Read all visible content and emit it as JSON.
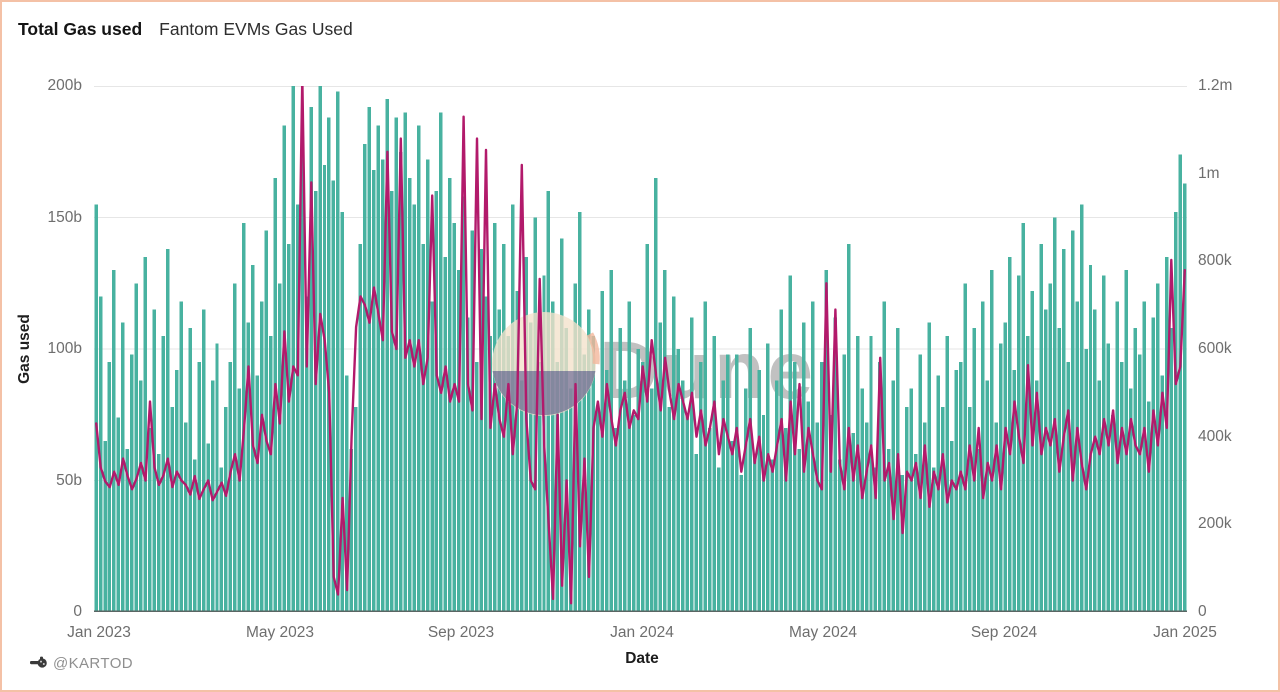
{
  "header": {
    "title": "Total Gas used",
    "subtitle": "Fantom EVMs Gas Used"
  },
  "footer": {
    "author": "@KARTOD"
  },
  "watermark": {
    "text": "Dune"
  },
  "colors": {
    "bars": "#48b2a0",
    "line": "#b21a6b",
    "grid": "#e6e6e6",
    "axis_text": "#6e6e6e",
    "baseline": "#5a6664",
    "card_border": "#f4c1a6",
    "watermark_text": "#8f8f8f",
    "watermark_circle_top": "#f3e1cb",
    "watermark_circle_bottom": "#373a7c"
  },
  "chart_data": {
    "type": "bar",
    "title": "Total Gas used — Fantom EVMs Gas Used",
    "xlabel": "Date",
    "grid": "horizontal",
    "legend": "none",
    "x_start": "2023-01-01",
    "interval_days": 3,
    "x_axis": {
      "label": "Date",
      "tick_labels": [
        "Jan 2023",
        "May 2023",
        "Sep 2023",
        "Jan 2024",
        "May 2024",
        "Sep 2024",
        "Jan 2025"
      ]
    },
    "y_left_axis": {
      "label": "Gas used",
      "tick_labels": [
        "200b",
        "150b",
        "100b",
        "50b",
        "0"
      ],
      "max_b": 200,
      "range": [
        0,
        200000000000
      ]
    },
    "y_right_axis": {
      "tick_labels": [
        "1.2m",
        "1m",
        "800k",
        "600k",
        "400k",
        "200k",
        "0"
      ],
      "max_k": 1200,
      "range": [
        0,
        1200000
      ]
    },
    "series": [
      {
        "name": "Total Gas used",
        "kind": "bar",
        "axis": "left",
        "unit": "billions",
        "color": "#48b2a0",
        "values": [
          155,
          120,
          65,
          95,
          130,
          74,
          110,
          62,
          98,
          125,
          88,
          135,
          70,
          115,
          60,
          105,
          138,
          78,
          92,
          118,
          72,
          108,
          58,
          95,
          115,
          64,
          88,
          102,
          55,
          78,
          95,
          125,
          85,
          148,
          110,
          132,
          90,
          118,
          145,
          105,
          165,
          125,
          185,
          140,
          200,
          155,
          178,
          120,
          192,
          160,
          203,
          170,
          188,
          164,
          198,
          152,
          90,
          62,
          78,
          140,
          178,
          192,
          168,
          185,
          172,
          195,
          160,
          188,
          175,
          190,
          165,
          155,
          185,
          140,
          172,
          118,
          160,
          190,
          135,
          165,
          148,
          130,
          158,
          112,
          145,
          95,
          138,
          120,
          105,
          148,
          115,
          140,
          105,
          155,
          122,
          88,
          135,
          110,
          150,
          95,
          128,
          160,
          118,
          95,
          142,
          108,
          85,
          125,
          152,
          98,
          115,
          105,
          78,
          122,
          92,
          130,
          70,
          108,
          88,
          118,
          75,
          100,
          95,
          140,
          85,
          165,
          110,
          130,
          78,
          120,
          100,
          88,
          75,
          112,
          60,
          95,
          118,
          70,
          105,
          55,
          88,
          98,
          65,
          98,
          52,
          85,
          108,
          60,
          92,
          75,
          102,
          58,
          88,
          115,
          70,
          128,
          95,
          62,
          110,
          80,
          118,
          72,
          95,
          130,
          75,
          112,
          58,
          98,
          140,
          68,
          105,
          85,
          72,
          105,
          55,
          95,
          118,
          62,
          88,
          108,
          52,
          78,
          85,
          60,
          98,
          72,
          110,
          55,
          90,
          78,
          105,
          65,
          92,
          95,
          125,
          78,
          108,
          62,
          118,
          88,
          130,
          72,
          102,
          110,
          135,
          92,
          128,
          148,
          105,
          122,
          88,
          140,
          115,
          125,
          150,
          108,
          138,
          95,
          145,
          118,
          155,
          100,
          132,
          115,
          88,
          128,
          102,
          75,
          118,
          95,
          130,
          85,
          108,
          98,
          118,
          80,
          112,
          125,
          90,
          135,
          108,
          152,
          174,
          163
        ]
      },
      {
        "name": "Fantom EVMs Gas Used",
        "kind": "line",
        "axis": "right",
        "unit": "thousands",
        "color": "#b21a6b",
        "values": [
          430,
          330,
          298,
          285,
          320,
          290,
          350,
          310,
          280,
          305,
          340,
          300,
          480,
          330,
          290,
          312,
          350,
          285,
          320,
          300,
          290,
          268,
          310,
          258,
          280,
          300,
          255,
          275,
          295,
          265,
          320,
          360,
          300,
          420,
          560,
          380,
          340,
          450,
          390,
          360,
          520,
          430,
          640,
          480,
          560,
          540,
          1220,
          560,
          980,
          520,
          680,
          620,
          500,
          80,
          40,
          260,
          50,
          400,
          650,
          720,
          700,
          660,
          740,
          680,
          620,
          1050,
          640,
          600,
          1080,
          580,
          620,
          560,
          620,
          520,
          580,
          950,
          540,
          500,
          560,
          480,
          520,
          480,
          1130,
          520,
          460,
          1080,
          440,
          1054,
          420,
          520,
          440,
          400,
          520,
          360,
          480,
          1020,
          440,
          300,
          280,
          760,
          380,
          200,
          30,
          450,
          60,
          300,
          20,
          520,
          150,
          350,
          80,
          420,
          480,
          400,
          520,
          440,
          380,
          460,
          500,
          420,
          460,
          440,
          560,
          480,
          620,
          540,
          460,
          580,
          500,
          440,
          520,
          480,
          440,
          500,
          400,
          460,
          380,
          420,
          480,
          360,
          440,
          400,
          360,
          420,
          320,
          380,
          440,
          340,
          400,
          300,
          360,
          320,
          380,
          440,
          300,
          480,
          360,
          520,
          320,
          420,
          360,
          300,
          280,
          750,
          320,
          690,
          340,
          280,
          420,
          300,
          380,
          260,
          320,
          380,
          260,
          580,
          300,
          340,
          212,
          360,
          180,
          320,
          300,
          340,
          260,
          380,
          240,
          320,
          280,
          360,
          250,
          300,
          280,
          320,
          280,
          380,
          300,
          420,
          260,
          340,
          300,
          380,
          280,
          420,
          360,
          480,
          400,
          340,
          563,
          380,
          500,
          360,
          420,
          380,
          440,
          320,
          400,
          460,
          300,
          420,
          340,
          280,
          360,
          400,
          360,
          440,
          380,
          460,
          340,
          420,
          360,
          440,
          380,
          360,
          420,
          320,
          460,
          380,
          500,
          420,
          803,
          520,
          560,
          780
        ]
      }
    ]
  }
}
